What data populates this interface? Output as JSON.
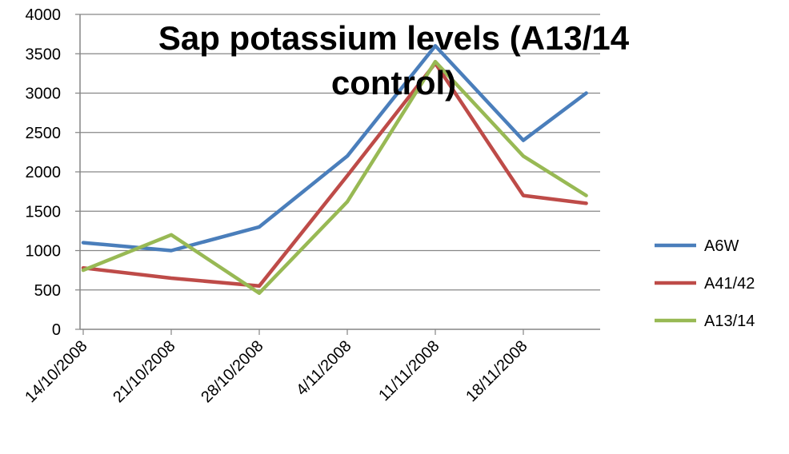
{
  "chart_data": {
    "type": "line",
    "title_lines": [
      "Sap potassium levels (A13/14",
      "control)"
    ],
    "xlabel": "",
    "ylabel": "",
    "x": [
      "2008-10-14",
      "2008-10-21",
      "2008-10-28",
      "2008-11-04",
      "2008-11-11",
      "2008-11-18",
      "2008-11-23"
    ],
    "categories": [
      "14/10/2008",
      "21/10/2008",
      "28/10/2008",
      "4/11/2008",
      "11/11/2008",
      "18/11/2008"
    ],
    "ylim": [
      0,
      4000
    ],
    "yticks": [
      0,
      500,
      1000,
      1500,
      2000,
      2500,
      3000,
      3500,
      4000
    ],
    "grid": true,
    "legend_position": "right",
    "series": [
      {
        "name": "A6W",
        "color": "#4a7ebb",
        "values": [
          1100,
          1000,
          1300,
          2200,
          3600,
          2400,
          3000
        ]
      },
      {
        "name": "A41/42",
        "color": "#be4b48",
        "values": [
          780,
          650,
          550,
          1950,
          3380,
          1700,
          1600
        ]
      },
      {
        "name": "A13/14",
        "color": "#98b954",
        "values": [
          750,
          1200,
          460,
          1620,
          3400,
          2200,
          1700
        ]
      }
    ]
  }
}
